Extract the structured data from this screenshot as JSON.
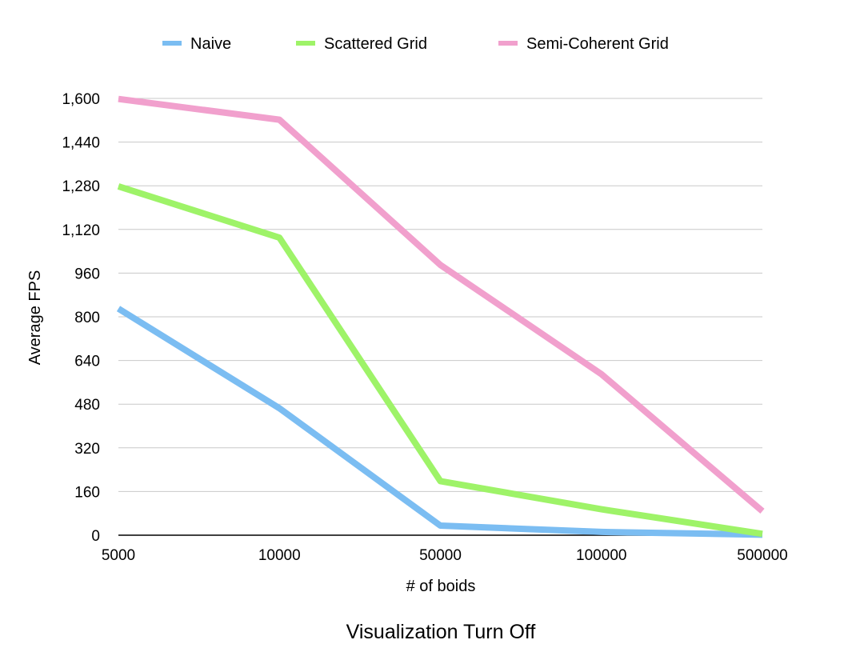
{
  "chart_data": {
    "type": "line",
    "title": "",
    "caption": "Visualization Turn Off",
    "xlabel": "# of boids",
    "ylabel": "Average FPS",
    "categories": [
      "5000",
      "10000",
      "50000",
      "100000",
      "500000"
    ],
    "ylim": [
      0,
      1600
    ],
    "yticks": [
      0,
      160,
      320,
      480,
      640,
      800,
      960,
      1120,
      1280,
      1440,
      1600
    ],
    "ytick_labels": [
      "0",
      "160",
      "320",
      "480",
      "640",
      "800",
      "960",
      "1,120",
      "1,280",
      "1,440",
      "1,600"
    ],
    "grid": true,
    "legend_position": "top",
    "series": [
      {
        "name": "Naive",
        "color": "#7bbdf2",
        "values": [
          830,
          465,
          35,
          12,
          2
        ]
      },
      {
        "name": "Scattered Grid",
        "color": "#9ef368",
        "values": [
          1278,
          1090,
          198,
          95,
          5
        ]
      },
      {
        "name": "Semi-Coherent Grid",
        "color": "#f1a0cd",
        "values": [
          1598,
          1522,
          990,
          590,
          88
        ]
      }
    ]
  }
}
